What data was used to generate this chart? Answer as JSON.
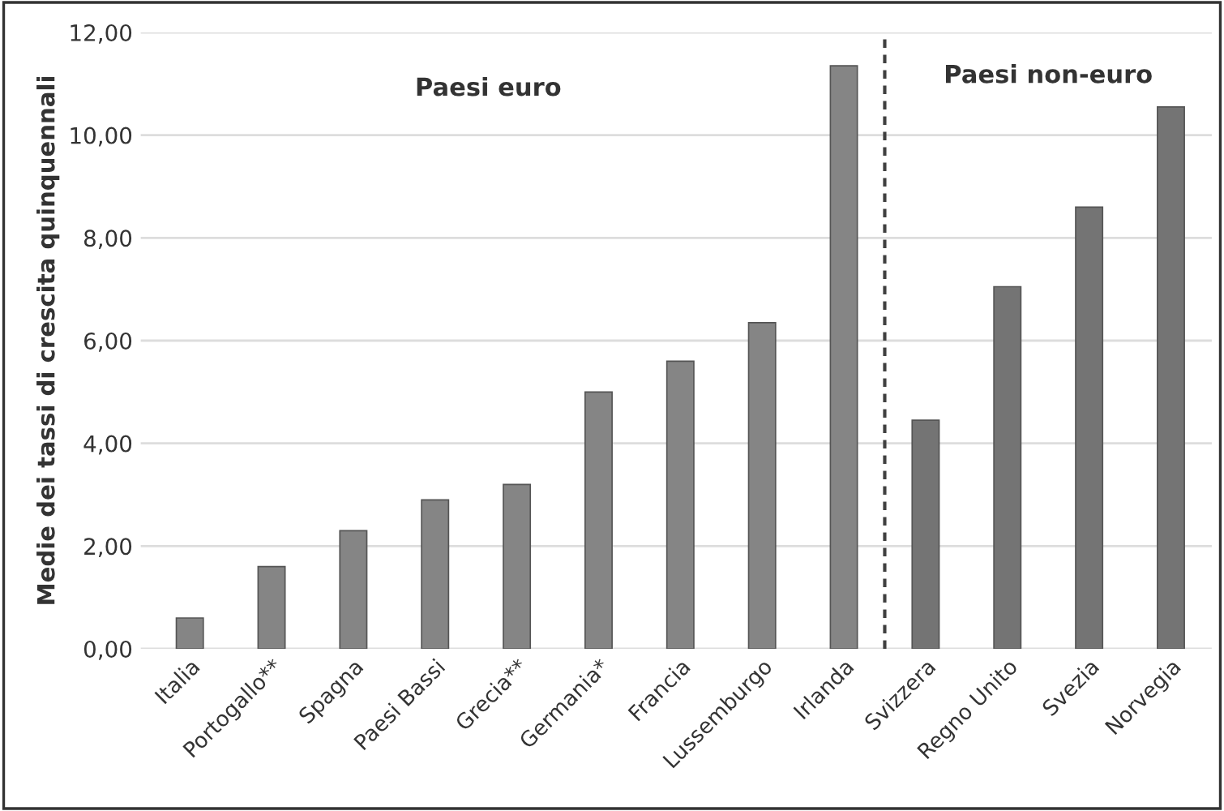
{
  "chart_data": {
    "type": "bar",
    "ylabel": "Medie dei tassi di crescita quinquennali",
    "categories": [
      "Italia",
      "Portogallo**",
      "Spagna",
      "Paesi Bassi",
      "Grecia**",
      "Germania*",
      "Francia",
      "Lussemburgo",
      "Irlanda",
      "Svizzera",
      "Regno Unito",
      "Svezia",
      "Norvegia"
    ],
    "values": [
      0.6,
      1.6,
      2.3,
      2.9,
      3.2,
      5.0,
      5.6,
      6.35,
      11.35,
      4.45,
      7.05,
      8.6,
      10.55
    ],
    "colors": [
      "#858585",
      "#858585",
      "#858585",
      "#858585",
      "#858585",
      "#858585",
      "#858585",
      "#858585",
      "#858585",
      "#747474",
      "#747474",
      "#747474",
      "#747474"
    ],
    "ylim": [
      0,
      12
    ],
    "yticks": [
      {
        "value": 0,
        "label": "0,00"
      },
      {
        "value": 2,
        "label": "2,00"
      },
      {
        "value": 4,
        "label": "4,00"
      },
      {
        "value": 6,
        "label": "6,00"
      },
      {
        "value": 8,
        "label": "8,00"
      },
      {
        "value": 10,
        "label": "10,00"
      },
      {
        "value": 12,
        "label": "12,00"
      }
    ],
    "annotations": [
      "Paesi euro",
      "Paesi non-euro"
    ],
    "grid": "y",
    "legend": false
  }
}
